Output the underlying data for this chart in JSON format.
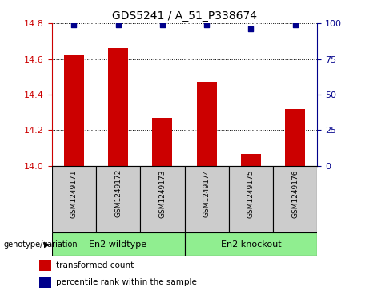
{
  "title": "GDS5241 / A_51_P338674",
  "samples": [
    "GSM1249171",
    "GSM1249172",
    "GSM1249173",
    "GSM1249174",
    "GSM1249175",
    "GSM1249176"
  ],
  "bar_values": [
    14.625,
    14.66,
    14.27,
    14.47,
    14.065,
    14.32
  ],
  "percentile_values": [
    99,
    99,
    99,
    99,
    96,
    99
  ],
  "bar_color": "#cc0000",
  "dot_color": "#00008b",
  "ylim_left": [
    14.0,
    14.8
  ],
  "ylim_right": [
    0,
    100
  ],
  "yticks_left": [
    14.0,
    14.2,
    14.4,
    14.6,
    14.8
  ],
  "yticks_right": [
    0,
    25,
    50,
    75,
    100
  ],
  "groups": [
    {
      "label": "En2 wildtype",
      "span": [
        0,
        3
      ],
      "color": "#90ee90"
    },
    {
      "label": "En2 knockout",
      "span": [
        3,
        6
      ],
      "color": "#90ee90"
    }
  ],
  "group_label_prefix": "genotype/variation",
  "legend_items": [
    {
      "label": "transformed count",
      "color": "#cc0000"
    },
    {
      "label": "percentile rank within the sample",
      "color": "#00008b"
    }
  ],
  "bar_width": 0.45,
  "background_color": "#ffffff",
  "tick_label_color_left": "#cc0000",
  "tick_label_color_right": "#00008b",
  "grid_linestyle": "dotted",
  "sample_box_color": "#cccccc",
  "title_fontsize": 10
}
